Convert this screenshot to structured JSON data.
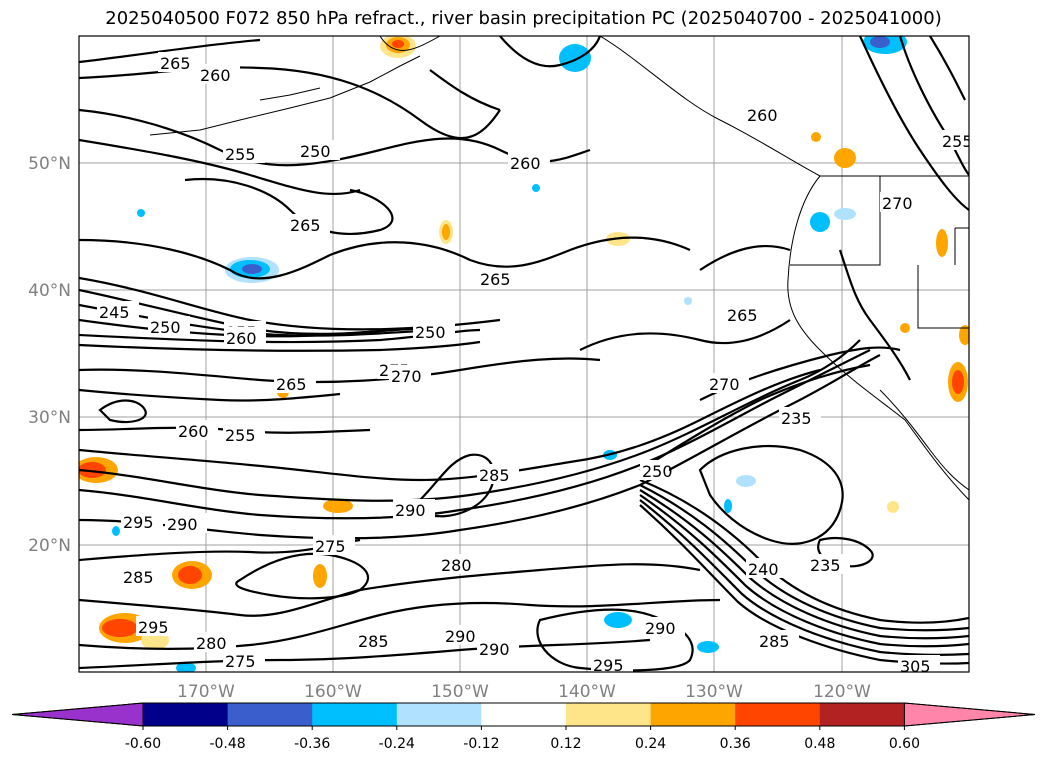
{
  "title": "2025040500 F072 850 hPa refract., river basin precipitation PC (2025040700 - 2025041000)",
  "latitude_labels": [
    "50°N",
    "40°N",
    "30°N",
    "20°N"
  ],
  "longitude_labels": [
    "170°W",
    "160°W",
    "150°W",
    "140°W",
    "130°W",
    "120°W"
  ],
  "contour_labels": [
    "265",
    "260",
    "255",
    "250",
    "260",
    "265",
    "265",
    "245",
    "250",
    "255",
    "260",
    "250",
    "265",
    "275",
    "270",
    "255",
    "260",
    "270",
    "285",
    "290",
    "295",
    "290",
    "285",
    "295",
    "280",
    "280",
    "275",
    "275",
    "285",
    "290",
    "290",
    "295",
    "285",
    "290",
    "305",
    "235",
    "240",
    "235",
    "260",
    "265",
    "270",
    "255",
    "250"
  ],
  "colorbar": {
    "ticks": [
      "-0.60",
      "-0.48",
      "-0.36",
      "-0.24",
      "-0.12",
      "0.12",
      "0.24",
      "0.36",
      "0.48",
      "0.60"
    ],
    "colors": [
      "#9932CC",
      "#00008B",
      "#3A5FCD",
      "#00BFFF",
      "#B0E2FF",
      "#FFFFFF",
      "#FFE58A",
      "#FFA500",
      "#FF4500",
      "#B22222",
      "#FF85AA"
    ]
  }
}
